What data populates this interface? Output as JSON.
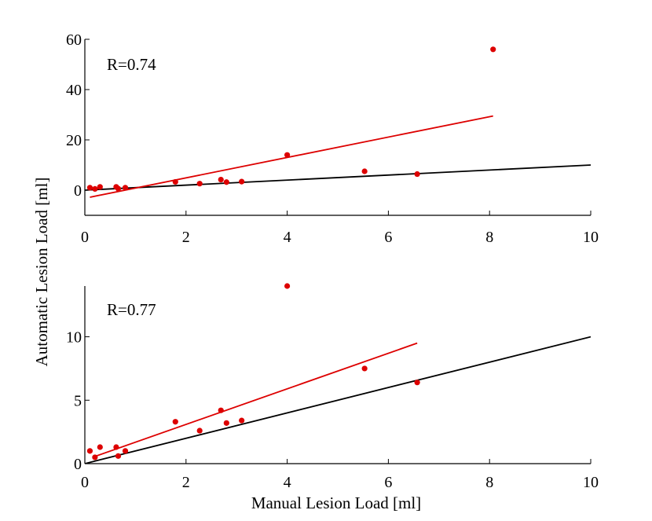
{
  "chart_data": [
    {
      "type": "scatter",
      "annotation": "R=0.74",
      "xlim": [
        0,
        10
      ],
      "ylim": [
        -10,
        60
      ],
      "xticks": [
        0,
        2,
        4,
        6,
        8,
        10
      ],
      "yticks": [
        0,
        20,
        40,
        60
      ],
      "xtick_labels": [
        "0",
        "2",
        "4",
        "6",
        "8",
        "10"
      ],
      "ytick_labels": [
        "0",
        "20",
        "40",
        "60"
      ],
      "points": [
        [
          0.1,
          1.0
        ],
        [
          0.2,
          0.5
        ],
        [
          0.3,
          1.3
        ],
        [
          0.62,
          1.3
        ],
        [
          0.66,
          0.6
        ],
        [
          0.8,
          1.0
        ],
        [
          1.79,
          3.3
        ],
        [
          2.27,
          2.6
        ],
        [
          2.69,
          4.2
        ],
        [
          2.8,
          3.2
        ],
        [
          3.1,
          3.4
        ],
        [
          4.0,
          14.0
        ],
        [
          5.53,
          7.5
        ],
        [
          6.57,
          6.4
        ],
        [
          8.07,
          56.0
        ]
      ],
      "identity_line": [
        [
          0,
          0
        ],
        [
          10,
          10
        ]
      ],
      "fit_line": [
        [
          0.1,
          -2.8
        ],
        [
          8.07,
          29.5
        ]
      ],
      "colors": {
        "points": "#dd0000",
        "fit": "#dd0000",
        "identity": "#000000"
      }
    },
    {
      "type": "scatter",
      "annotation": "R=0.77",
      "xlim": [
        0,
        10
      ],
      "ylim": [
        0,
        14
      ],
      "xticks": [
        0,
        2,
        4,
        6,
        8,
        10
      ],
      "yticks": [
        0,
        5,
        10
      ],
      "xtick_labels": [
        "0",
        "2",
        "4",
        "6",
        "8",
        "10"
      ],
      "ytick_labels": [
        "0",
        "5",
        "10"
      ],
      "points": [
        [
          0.1,
          1.0
        ],
        [
          0.2,
          0.5
        ],
        [
          0.3,
          1.3
        ],
        [
          0.62,
          1.3
        ],
        [
          0.66,
          0.6
        ],
        [
          0.8,
          1.0
        ],
        [
          1.79,
          3.3
        ],
        [
          2.27,
          2.6
        ],
        [
          2.69,
          4.2
        ],
        [
          2.8,
          3.2
        ],
        [
          3.1,
          3.4
        ],
        [
          4.0,
          14.0
        ],
        [
          5.53,
          7.5
        ],
        [
          6.57,
          6.4
        ]
      ],
      "identity_line": [
        [
          0,
          0
        ],
        [
          10,
          10
        ]
      ],
      "fit_line": [
        [
          0.15,
          0.5
        ],
        [
          6.57,
          9.5
        ]
      ],
      "colors": {
        "points": "#dd0000",
        "fit": "#dd0000",
        "identity": "#000000"
      }
    }
  ],
  "labels": {
    "ylabel": "Automatic Lesion Load [ml]",
    "xlabel": "Manual Lesion Load [ml]"
  }
}
